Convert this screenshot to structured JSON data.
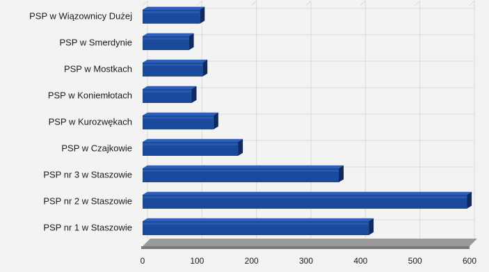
{
  "chart_data": {
    "type": "bar",
    "orientation": "horizontal",
    "style": "3d",
    "categories": [
      "PSP w Wiązownicy Dużej",
      "PSP w Smerdynie",
      "PSP w Mostkach",
      "PSP w Koniemłotach",
      "PSP w Kurozwękach",
      "PSP w Czajkowie",
      "PSP nr 3 w Staszowie",
      "PSP nr 2 w Staszowie",
      "PSP nr 1 w Staszowie"
    ],
    "values": [
      105,
      85,
      110,
      90,
      130,
      175,
      360,
      595,
      415
    ],
    "xlim": [
      0,
      600
    ],
    "xticks": [
      0,
      100,
      200,
      300,
      400,
      500,
      600
    ],
    "grid": true,
    "legend": false,
    "title": "",
    "xlabel": "",
    "ylabel": "",
    "colors": {
      "bar_front": "#1a4a9c",
      "bar_top": "#2f5fb8",
      "bar_side": "#0d2a63",
      "grid": "#d9d9d9",
      "floor": "#9a9a9a",
      "text": "#1a1a1a"
    }
  }
}
